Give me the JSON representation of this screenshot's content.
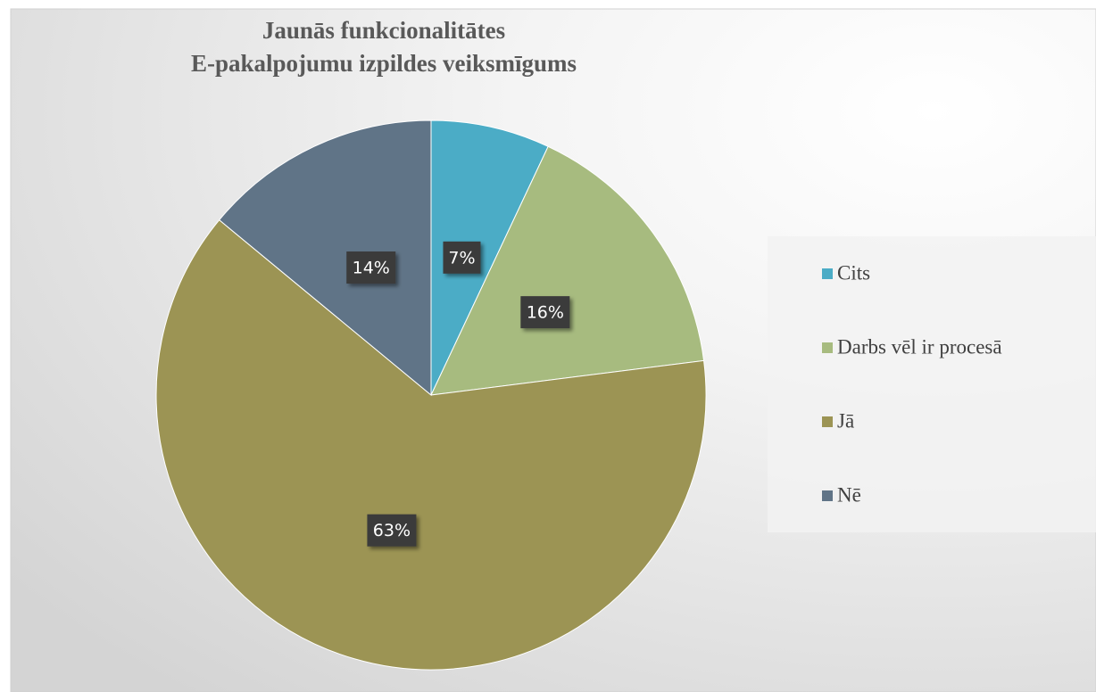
{
  "chart_data": {
    "type": "pie",
    "title": "Jaunās funkcionalitātes",
    "subtitle": "E-pakalpojumu izpildes veiksmīgums",
    "categories": [
      "Cits",
      "Darbs vēl ir procesā",
      "Jā",
      "Nē"
    ],
    "values": [
      7,
      16,
      63,
      14
    ],
    "value_labels": [
      "7%",
      "16%",
      "63%",
      "14%"
    ],
    "colors": [
      "#4bacc6",
      "#a7bb7f",
      "#9c9454",
      "#607487"
    ],
    "legend": "right"
  }
}
